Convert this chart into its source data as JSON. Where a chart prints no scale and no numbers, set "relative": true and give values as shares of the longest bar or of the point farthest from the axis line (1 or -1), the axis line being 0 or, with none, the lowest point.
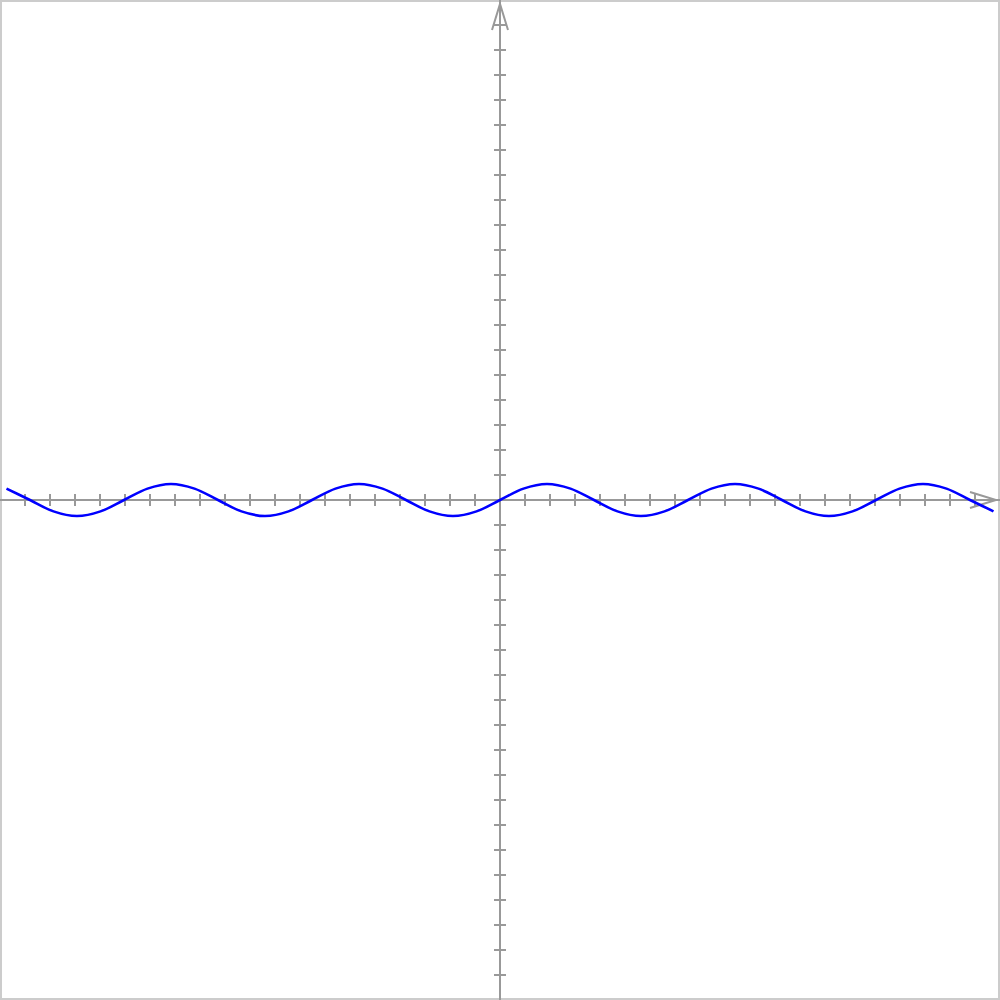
{
  "chart_data": {
    "type": "line",
    "relative": true,
    "categories": [
      null,
      null,
      null,
      null,
      null,
      null,
      null,
      null,
      null,
      null,
      null,
      null,
      null,
      null,
      null,
      null,
      null,
      null,
      null,
      null,
      null,
      null,
      null,
      null,
      null,
      null,
      null,
      null,
      null,
      null,
      null,
      null,
      null,
      null,
      null,
      null,
      null,
      null,
      null,
      null,
      null,
      null,
      null
    ],
    "series": [
      {
        "color": "#0000ff",
        "values": [
          0.71,
          0,
          -0.71,
          -1,
          -0.71,
          0,
          0.71,
          1,
          0.71,
          0,
          -0.71,
          -1,
          -0.71,
          0,
          0.71,
          1,
          0.71,
          0,
          -0.71,
          -1,
          -0.71,
          0,
          0.71,
          1,
          0.71,
          0,
          -0.71,
          -1,
          -0.71,
          0,
          0.71,
          1,
          0.71,
          0,
          -0.71,
          -1,
          -0.71,
          0,
          0.71,
          1,
          0.71,
          0,
          -0.71
        ]
      }
    ],
    "grid": false,
    "marker": "none",
    "line_style": "solid"
  }
}
